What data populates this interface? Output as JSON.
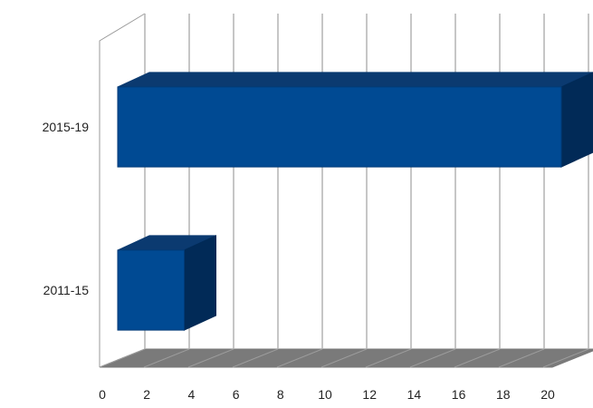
{
  "chart_data": {
    "type": "bar",
    "orientation": "horizontal",
    "three_d": true,
    "categories": [
      "2011-15",
      "2015-19"
    ],
    "values": [
      3,
      20
    ],
    "xlim": [
      0,
      20
    ],
    "x_ticks": [
      "0",
      "2",
      "4",
      "6",
      "8",
      "10",
      "12",
      "14",
      "16",
      "18",
      "20"
    ],
    "grid": true,
    "legend": "none",
    "title": "",
    "xlabel": "",
    "ylabel": ""
  },
  "colors": {
    "bar_front": "#004a93",
    "bar_top": "#0b3a70",
    "bar_side": "#012a57",
    "floor": "#7a7a7a",
    "grid": "#b3b3b3"
  }
}
